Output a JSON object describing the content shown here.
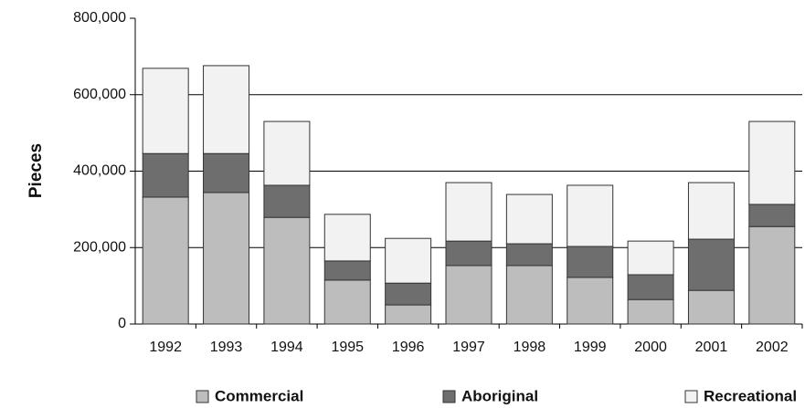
{
  "chart_data": {
    "type": "stacked_bar",
    "ylabel": "Pieces",
    "categories": [
      "1992",
      "1993",
      "1994",
      "1995",
      "1996",
      "1997",
      "1998",
      "1999",
      "2000",
      "2001",
      "2002"
    ],
    "series": [
      {
        "name": "Commercial",
        "color": "#bdbdbd",
        "values": [
          332000,
          344000,
          279000,
          115000,
          50000,
          153000,
          153000,
          122000,
          64000,
          88000,
          255000
        ]
      },
      {
        "name": "Aboriginal",
        "color": "#6e6e6e",
        "values": [
          114000,
          102000,
          84000,
          50000,
          57000,
          64000,
          57000,
          81000,
          65000,
          134000,
          58000
        ]
      },
      {
        "name": "Recreational",
        "color": "#f2f2f2",
        "values": [
          223000,
          230000,
          167000,
          122000,
          117000,
          153000,
          129000,
          160000,
          88000,
          148000,
          217000
        ]
      }
    ],
    "ylim": [
      0,
      800000
    ],
    "yticks": [
      0,
      {
        "value": 200000,
        "label": "200,000"
      },
      {
        "value": 400000,
        "label": "400,000"
      },
      {
        "value": 600000,
        "label": "600,000"
      },
      {
        "value": 800000,
        "label": "800,000"
      }
    ],
    "grid": true,
    "legend": "bottom"
  }
}
